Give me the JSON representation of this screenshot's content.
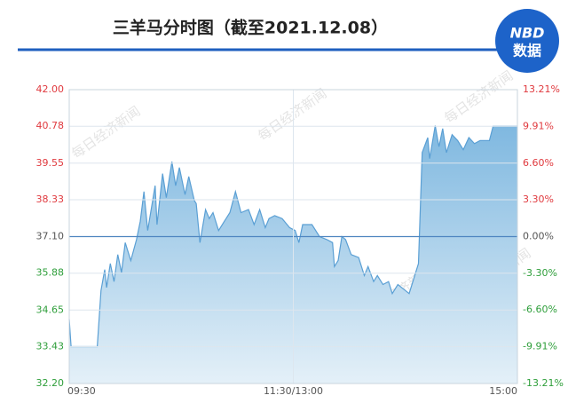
{
  "chart_data": {
    "type": "area",
    "title": "三羊马分时图（截至2021.12.08）",
    "logo": {
      "line1": "NBD",
      "line2": "数据"
    },
    "watermark": "每日经济新闻",
    "x": [
      0,
      1,
      15,
      17,
      19,
      20,
      22,
      24,
      26,
      28,
      30,
      33,
      36,
      38,
      40,
      42,
      46,
      47,
      50,
      52,
      55,
      57,
      59,
      62,
      64,
      67,
      68,
      70,
      73,
      75,
      77,
      80,
      83,
      86,
      89,
      92,
      96,
      99,
      102,
      105,
      107,
      110,
      114,
      118,
      121,
      123,
      125,
      130,
      134,
      138,
      141,
      142,
      144,
      146,
      148,
      151,
      155,
      158,
      160,
      163,
      165,
      168,
      171,
      173,
      176,
      180,
      182,
      185,
      187,
      189,
      192,
      193,
      196,
      198,
      200,
      202,
      205,
      208,
      211,
      214,
      217,
      220,
      225,
      227,
      240
    ],
    "series": [
      {
        "name": "三羊马",
        "color": "#5a9fd4",
        "values": [
          34.34,
          33.43,
          33.43,
          35.3,
          36.0,
          35.4,
          36.2,
          35.6,
          36.5,
          35.9,
          36.9,
          36.3,
          37.0,
          37.6,
          38.6,
          37.3,
          38.8,
          37.5,
          39.2,
          38.4,
          39.6,
          38.8,
          39.4,
          38.5,
          39.1,
          38.3,
          38.2,
          36.9,
          38.0,
          37.7,
          37.9,
          37.3,
          37.6,
          37.9,
          38.6,
          37.9,
          38.0,
          37.5,
          38.0,
          37.4,
          37.7,
          37.8,
          37.7,
          37.4,
          37.3,
          36.9,
          37.5,
          37.5,
          37.1,
          37.0,
          36.9,
          36.1,
          36.3,
          37.1,
          37.0,
          36.5,
          36.4,
          35.8,
          36.1,
          35.6,
          35.8,
          35.5,
          35.6,
          35.2,
          35.5,
          35.3,
          35.2,
          35.8,
          36.2,
          39.9,
          40.4,
          39.7,
          40.8,
          40.1,
          40.7,
          39.9,
          40.5,
          40.3,
          40.0,
          40.4,
          40.2,
          40.3,
          40.3,
          40.78,
          40.78
        ]
      }
    ],
    "xlim": [
      0,
      240
    ],
    "xticks": [
      {
        "value": 0,
        "label": "09:30"
      },
      {
        "value": 120,
        "label": "11:30/13:00"
      },
      {
        "value": 240,
        "label": "15:00"
      }
    ],
    "ylim": [
      32.2,
      42.0
    ],
    "yticks": [
      {
        "value": 32.2,
        "label": "32.20"
      },
      {
        "value": 33.43,
        "label": "33.43"
      },
      {
        "value": 34.65,
        "label": "34.65"
      },
      {
        "value": 35.88,
        "label": "35.88"
      },
      {
        "value": 37.1,
        "label": "37.10"
      },
      {
        "value": 38.33,
        "label": "38.33"
      },
      {
        "value": 39.55,
        "label": "39.55"
      },
      {
        "value": 40.78,
        "label": "40.78"
      },
      {
        "value": 42.0,
        "label": "42.00"
      }
    ],
    "y2lim": [
      -13.21,
      13.21
    ],
    "y2ticks": [
      {
        "value": -13.21,
        "label": "-13.21%"
      },
      {
        "value": -9.91,
        "label": "-9.91%"
      },
      {
        "value": -6.6,
        "label": "-6.60%"
      },
      {
        "value": -3.3,
        "label": "-3.30%"
      },
      {
        "value": 0,
        "label": "0.00%"
      },
      {
        "value": 3.3,
        "label": "3.30%"
      },
      {
        "value": 6.6,
        "label": "6.60%"
      },
      {
        "value": 9.91,
        "label": "9.91%"
      },
      {
        "value": 13.21,
        "label": "13.21%"
      }
    ],
    "baseline": 37.1,
    "up_color": "#e0393e",
    "down_color": "#2e9e3a",
    "flat_color": "#555555",
    "grid": true
  }
}
